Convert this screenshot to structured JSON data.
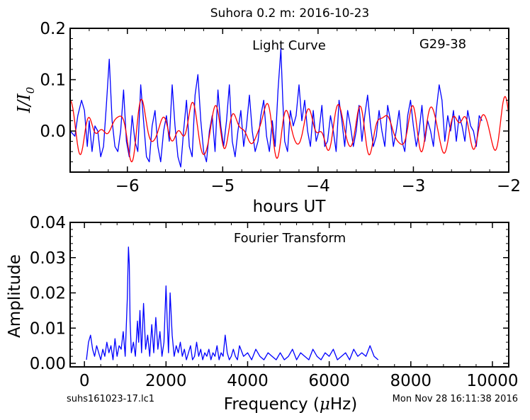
{
  "figure": {
    "title": "Suhora 0.2 m:  2016-10-23",
    "footer_left": "suhs161023-17.lc1",
    "footer_right": "Mon Nov 28 16:11:38 2016"
  },
  "chart_data": [
    {
      "type": "line",
      "annotation": "Light Curve",
      "object": "G29-38",
      "xlabel": "hours UT",
      "ylabel": "I/I0",
      "xlim": [
        -6.6,
        -2.0
      ],
      "ylim": [
        -0.08,
        0.2
      ],
      "xticks": [
        -6,
        -5,
        -4,
        -3,
        -2
      ],
      "xtick_labels": [
        "−6",
        "−5",
        "−4",
        "−3",
        "−2"
      ],
      "yticks": [
        0.0,
        0.1,
        0.2
      ],
      "ytick_labels": [
        "0.0",
        "0.1",
        "0.2"
      ],
      "series": [
        {
          "color": "#0000ff",
          "x": [
            -6.6,
            -6.55,
            -6.52,
            -6.48,
            -6.45,
            -6.42,
            -6.4,
            -6.37,
            -6.34,
            -6.31,
            -6.28,
            -6.25,
            -6.22,
            -6.19,
            -6.16,
            -6.13,
            -6.1,
            -6.07,
            -6.04,
            -6.01,
            -5.98,
            -5.95,
            -5.92,
            -5.89,
            -5.86,
            -5.83,
            -5.8,
            -5.77,
            -5.74,
            -5.71,
            -5.68,
            -5.65,
            -5.62,
            -5.59,
            -5.56,
            -5.53,
            -5.5,
            -5.47,
            -5.44,
            -5.41,
            -5.38,
            -5.35,
            -5.32,
            -5.29,
            -5.26,
            -5.23,
            -5.2,
            -5.17,
            -5.14,
            -5.11,
            -5.08,
            -5.05,
            -5.02,
            -4.99,
            -4.96,
            -4.93,
            -4.9,
            -4.87,
            -4.84,
            -4.81,
            -4.78,
            -4.75,
            -4.72,
            -4.69,
            -4.66,
            -4.63,
            -4.6,
            -4.57,
            -4.54,
            -4.51,
            -4.48,
            -4.45,
            -4.42,
            -4.39,
            -4.37,
            -4.35,
            -4.32,
            -4.29,
            -4.26,
            -4.23,
            -4.2,
            -4.17,
            -4.14,
            -4.11,
            -4.08,
            -4.05,
            -4.02,
            -3.99,
            -3.96,
            -3.93,
            -3.9,
            -3.87,
            -3.84,
            -3.81,
            -3.78,
            -3.75,
            -3.72,
            -3.69,
            -3.66,
            -3.63,
            -3.6,
            -3.57,
            -3.54,
            -3.51,
            -3.48,
            -3.45,
            -3.42,
            -3.39,
            -3.36,
            -3.33,
            -3.3,
            -3.27,
            -3.24,
            -3.21,
            -3.18,
            -3.15,
            -3.12,
            -3.09,
            -3.06,
            -3.03,
            -3.0,
            -2.97,
            -2.94,
            -2.91,
            -2.88,
            -2.85,
            -2.82,
            -2.79,
            -2.76,
            -2.73,
            -2.7,
            -2.67,
            -2.64,
            -2.61,
            -2.58,
            -2.55,
            -2.52,
            -2.49,
            -2.46,
            -2.43,
            -2.4,
            -2.37,
            -2.34,
            -2.31,
            -2.28
          ],
          "y": [
            0.0,
            -0.01,
            0.03,
            0.06,
            0.04,
            -0.03,
            0.02,
            -0.04,
            0.01,
            0.0,
            -0.05,
            -0.03,
            0.05,
            0.14,
            0.02,
            -0.03,
            -0.04,
            0.0,
            0.08,
            -0.02,
            -0.05,
            0.03,
            -0.02,
            -0.04,
            0.09,
            0.02,
            -0.05,
            -0.06,
            0.01,
            0.04,
            -0.03,
            -0.06,
            0.0,
            0.03,
            -0.02,
            0.09,
            0.01,
            -0.05,
            -0.07,
            0.0,
            0.06,
            -0.03,
            -0.05,
            0.07,
            0.11,
            0.02,
            -0.04,
            -0.06,
            0.0,
            0.03,
            -0.04,
            0.08,
            0.01,
            -0.03,
            0.02,
            0.09,
            -0.02,
            -0.05,
            0.0,
            0.04,
            -0.03,
            0.01,
            0.07,
            0.0,
            -0.04,
            -0.02,
            0.03,
            0.06,
            -0.01,
            -0.04,
            0.02,
            -0.03,
            0.08,
            0.16,
            0.06,
            -0.02,
            -0.04,
            0.04,
            0.01,
            0.03,
            0.09,
            0.02,
            0.06,
            0.0,
            -0.03,
            0.04,
            -0.02,
            0.0,
            0.05,
            -0.03,
            -0.02,
            0.03,
            0.0,
            -0.04,
            0.06,
            0.02,
            -0.03,
            0.04,
            0.01,
            -0.03,
            0.0,
            0.05,
            -0.02,
            0.03,
            0.07,
            0.01,
            -0.03,
            -0.01,
            0.04,
            0.0,
            -0.03,
            0.05,
            0.02,
            -0.03,
            0.0,
            0.04,
            -0.02,
            -0.04,
            0.03,
            0.06,
            0.01,
            -0.03,
            0.0,
            0.05,
            -0.02,
            0.02,
            0.0,
            -0.03,
            0.04,
            0.09,
            0.06,
            -0.02,
            0.03,
            0.0,
            0.04,
            -0.02,
            0.03,
            0.01,
            -0.02,
            0.04,
            0.01,
            0.0,
            -0.03,
            0.03,
            0.02
          ],
          "stroke_width": 1.3
        },
        {
          "color": "#ff0000",
          "expression": "model light curve (smooth multi-periodic fit)",
          "stroke_width": 1.3
        }
      ]
    },
    {
      "type": "line",
      "annotation": "Fourier Transform",
      "xlabel": "Frequency (μHz)",
      "xlabel_prefix": "Frequency (",
      "xlabel_mu": "μ",
      "xlabel_suffix": "Hz)",
      "ylabel": "Amplitude",
      "xlim": [
        -350,
        10400
      ],
      "ylim": [
        -0.001,
        0.04
      ],
      "xticks": [
        0,
        2000,
        4000,
        6000,
        8000,
        10000
      ],
      "xtick_labels": [
        "0",
        "2000",
        "4000",
        "6000",
        "8000",
        "10000"
      ],
      "yticks": [
        0.0,
        0.01,
        0.02,
        0.03,
        0.04
      ],
      "ytick_labels": [
        "0.00",
        "0.01",
        "0.02",
        "0.03",
        "0.04"
      ],
      "series": [
        {
          "color": "#0000ff",
          "x": [
            50,
            100,
            150,
            200,
            250,
            300,
            350,
            400,
            450,
            500,
            550,
            600,
            650,
            700,
            750,
            800,
            850,
            900,
            950,
            1000,
            1050,
            1080,
            1100,
            1120,
            1150,
            1200,
            1250,
            1300,
            1330,
            1360,
            1400,
            1450,
            1500,
            1550,
            1600,
            1650,
            1700,
            1750,
            1800,
            1850,
            1900,
            1950,
            2000,
            2030,
            2060,
            2100,
            2150,
            2200,
            2250,
            2300,
            2350,
            2400,
            2450,
            2500,
            2550,
            2600,
            2650,
            2700,
            2750,
            2800,
            2850,
            2900,
            2950,
            3000,
            3050,
            3100,
            3150,
            3200,
            3250,
            3300,
            3350,
            3400,
            3450,
            3500,
            3550,
            3600,
            3650,
            3700,
            3750,
            3800,
            3900,
            4000,
            4100,
            4200,
            4300,
            4400,
            4500,
            4600,
            4700,
            4800,
            4900,
            5000,
            5100,
            5200,
            5300,
            5400,
            5500,
            5600,
            5700,
            5800,
            5900,
            6000,
            6100,
            6200,
            6300,
            6400,
            6500,
            6600,
            6700,
            6800,
            6900,
            7000,
            7100,
            7200
          ],
          "y": [
            0.001,
            0.006,
            0.008,
            0.004,
            0.002,
            0.005,
            0.003,
            0.001,
            0.004,
            0.002,
            0.006,
            0.003,
            0.005,
            0.001,
            0.007,
            0.002,
            0.005,
            0.004,
            0.009,
            0.002,
            0.018,
            0.033,
            0.028,
            0.012,
            0.003,
            0.006,
            0.002,
            0.012,
            0.006,
            0.015,
            0.003,
            0.017,
            0.004,
            0.008,
            0.002,
            0.011,
            0.003,
            0.013,
            0.004,
            0.009,
            0.002,
            0.006,
            0.022,
            0.012,
            0.003,
            0.02,
            0.008,
            0.002,
            0.005,
            0.003,
            0.006,
            0.002,
            0.004,
            0.001,
            0.003,
            0.005,
            0.001,
            0.002,
            0.006,
            0.002,
            0.004,
            0.001,
            0.003,
            0.002,
            0.004,
            0.001,
            0.003,
            0.002,
            0.005,
            0.001,
            0.003,
            0.002,
            0.008,
            0.003,
            0.001,
            0.002,
            0.004,
            0.002,
            0.001,
            0.005,
            0.002,
            0.003,
            0.001,
            0.004,
            0.002,
            0.001,
            0.003,
            0.002,
            0.001,
            0.003,
            0.001,
            0.002,
            0.004,
            0.001,
            0.003,
            0.002,
            0.001,
            0.004,
            0.002,
            0.001,
            0.003,
            0.002,
            0.004,
            0.001,
            0.002,
            0.003,
            0.001,
            0.004,
            0.002,
            0.003,
            0.002,
            0.005,
            0.002,
            0.001
          ],
          "stroke_width": 1.3
        }
      ]
    }
  ]
}
